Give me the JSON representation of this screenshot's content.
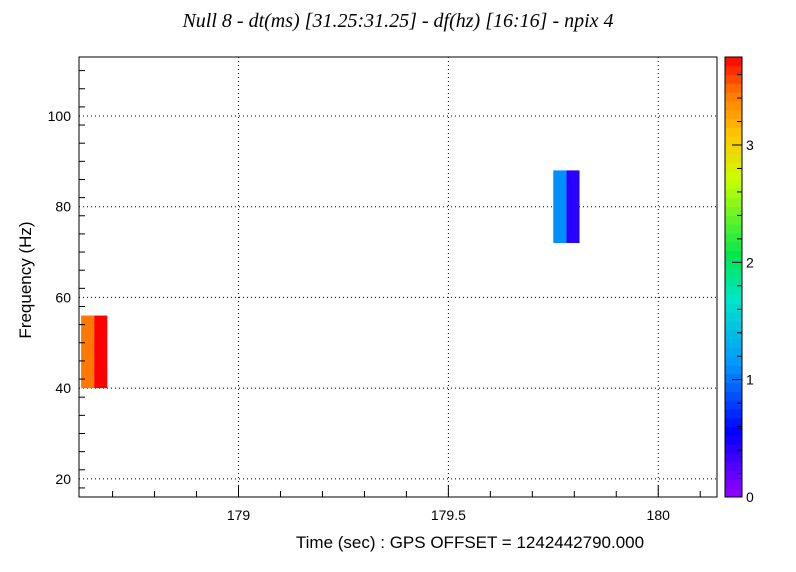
{
  "chart_data": {
    "type": "heatmap",
    "title": "Null   8 - dt(ms) [31.25:31.25] - df(hz) [16:16] - npix 4",
    "xlabel": "Time (sec) : GPS OFFSET = 1242442790.000",
    "ylabel": "Frequency (Hz)",
    "xlim": [
      178.62,
      180.14
    ],
    "ylim": [
      16,
      113
    ],
    "grid": true,
    "x_ticks": [
      179,
      179.5,
      180
    ],
    "x_tick_labels": [
      "179",
      "179.5",
      "180"
    ],
    "y_ticks": [
      20,
      40,
      60,
      80,
      100
    ],
    "y_tick_labels": [
      "20",
      "40",
      "60",
      "80",
      "100"
    ],
    "colorbar": {
      "range": [
        0,
        3.75
      ],
      "ticks": [
        0,
        1,
        2,
        3
      ],
      "tick_labels": [
        "0",
        "1",
        "2",
        "3"
      ],
      "palette": "rainbow (violet to red)"
    },
    "pixels": [
      {
        "t0": 178.625,
        "t1": 178.65625,
        "f0": 40,
        "f1": 56,
        "value": 3.45
      },
      {
        "t0": 178.65625,
        "t1": 178.6875,
        "f0": 40,
        "f1": 56,
        "value": 3.75
      },
      {
        "t0": 179.75,
        "t1": 179.78125,
        "f0": 72,
        "f1": 88,
        "value": 1.1
      },
      {
        "t0": 179.78125,
        "t1": 179.8125,
        "f0": 72,
        "f1": 88,
        "value": 0.4
      }
    ]
  }
}
